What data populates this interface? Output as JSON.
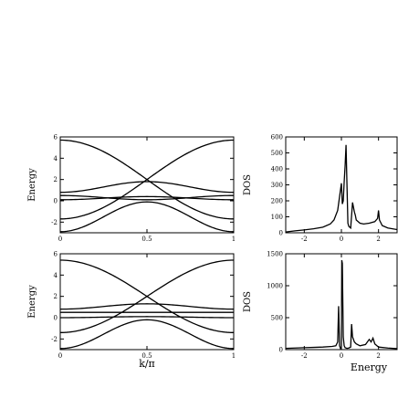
{
  "chart_data": [
    {
      "id": "band_top",
      "type": "line",
      "xlabel": "",
      "ylabel": "Energy",
      "xlim": [
        0,
        1
      ],
      "ylim": [
        -3,
        6
      ],
      "xticks": [
        0,
        0.5,
        1
      ],
      "xtick_labels": [
        "0",
        "0.5",
        "1"
      ],
      "yticks": [
        -2,
        0,
        2,
        4,
        6
      ],
      "ytick_labels": [
        "-2",
        "0",
        "2",
        "4",
        "6"
      ],
      "series": [
        {
          "x": [
            0,
            0.5,
            1
          ],
          "y": [
            5.7,
            2.0,
            -1.7
          ],
          "shape": "cos"
        },
        {
          "x": [
            0,
            0.5,
            1
          ],
          "y": [
            -1.7,
            2.0,
            5.7
          ],
          "shape": "cos"
        },
        {
          "x": [
            0,
            0.5,
            1
          ],
          "y": [
            0.8,
            1.8,
            0.8
          ],
          "shape": "bump"
        },
        {
          "x": [
            0,
            0.5,
            1
          ],
          "y": [
            0.5,
            0.1,
            0.5
          ],
          "shape": "bump"
        },
        {
          "x": [
            0,
            0.5,
            1
          ],
          "y": [
            0.1,
            0.4,
            0.1
          ],
          "shape": "bump"
        },
        {
          "x": [
            0,
            0.5,
            1
          ],
          "y": [
            -2.9,
            -0.1,
            -2.9
          ],
          "shape": "bump"
        }
      ]
    },
    {
      "id": "band_bottom",
      "type": "line",
      "xlabel": "k/π",
      "ylabel": "Energy",
      "xlim": [
        0,
        1
      ],
      "ylim": [
        -3,
        6
      ],
      "xticks": [
        0,
        0.5,
        1
      ],
      "xtick_labels": [
        "0",
        "0.5",
        "1"
      ],
      "yticks": [
        -2,
        0,
        2,
        4,
        6
      ],
      "ytick_labels": [
        "-2",
        "0",
        "2",
        "4",
        "6"
      ],
      "series": [
        {
          "x": [
            0,
            0.5,
            1
          ],
          "y": [
            5.4,
            2.0,
            -1.4
          ],
          "shape": "cos"
        },
        {
          "x": [
            0,
            0.5,
            1
          ],
          "y": [
            -1.4,
            2.0,
            5.4
          ],
          "shape": "cos"
        },
        {
          "x": [
            0,
            0.5,
            1
          ],
          "y": [
            0.8,
            1.3,
            0.8
          ],
          "shape": "bump"
        },
        {
          "x": [
            0,
            0.5,
            1
          ],
          "y": [
            0.5,
            0.5,
            0.5
          ],
          "shape": "bump"
        },
        {
          "x": [
            0,
            0.5,
            1
          ],
          "y": [
            0.0,
            0.1,
            0.0
          ],
          "shape": "bump"
        },
        {
          "x": [
            0,
            0.5,
            1
          ],
          "y": [
            -2.9,
            -0.2,
            -2.9
          ],
          "shape": "bump"
        }
      ]
    },
    {
      "id": "dos_top",
      "type": "line",
      "xlabel": "",
      "ylabel": "DOS",
      "xlim": [
        -3,
        3
      ],
      "ylim": [
        0,
        600
      ],
      "xticks": [
        -2,
        0,
        2
      ],
      "xtick_labels": [
        "-2",
        "0",
        "2"
      ],
      "yticks": [
        0,
        100,
        200,
        300,
        400,
        500,
        600
      ],
      "ytick_labels": [
        "0",
        "100",
        "200",
        "300",
        "400",
        "500",
        "600"
      ],
      "series": [
        {
          "x": [
            -3,
            -2.5,
            -2,
            -1.5,
            -1,
            -0.6,
            -0.4,
            -0.2,
            0,
            0.05,
            0.1,
            0.15,
            0.2,
            0.25,
            0.3,
            0.35,
            0.4,
            0.5,
            0.6,
            0.7,
            0.75,
            0.8,
            0.9,
            1.0,
            1.2,
            1.5,
            1.8,
            1.95,
            2.0,
            2.05,
            2.2,
            2.5,
            3
          ],
          "y": [
            5,
            12,
            18,
            25,
            35,
            55,
            80,
            140,
            310,
            180,
            200,
            320,
            420,
            550,
            300,
            60,
            40,
            30,
            190,
            130,
            110,
            80,
            70,
            60,
            55,
            60,
            70,
            90,
            140,
            80,
            45,
            30,
            20
          ]
        }
      ]
    },
    {
      "id": "dos_bottom",
      "type": "line",
      "xlabel": "Energy",
      "ylabel": "DOS",
      "xlim": [
        -3,
        3
      ],
      "ylim": [
        0,
        1500
      ],
      "xticks": [
        -2,
        0,
        2
      ],
      "xtick_labels": [
        "-2",
        "0",
        "2"
      ],
      "yticks": [
        0,
        500,
        1000,
        1500
      ],
      "ytick_labels": [
        "0",
        "500",
        "1000",
        "1500"
      ],
      "series": [
        {
          "x": [
            -3,
            -2.5,
            -2,
            -1.5,
            -1,
            -0.5,
            -0.3,
            -0.2,
            -0.15,
            -0.1,
            -0.05,
            0,
            0.02,
            0.05,
            0.1,
            0.15,
            0.2,
            0.3,
            0.4,
            0.5,
            0.55,
            0.6,
            0.7,
            0.8,
            1.0,
            1.3,
            1.5,
            1.6,
            1.7,
            1.8,
            2.0,
            2.5,
            3
          ],
          "y": [
            20,
            25,
            30,
            35,
            40,
            50,
            60,
            120,
            680,
            60,
            20,
            40,
            1400,
            1350,
            200,
            60,
            30,
            20,
            25,
            40,
            400,
            200,
            120,
            90,
            60,
            80,
            160,
            120,
            180,
            90,
            40,
            25,
            15
          ]
        }
      ]
    }
  ]
}
